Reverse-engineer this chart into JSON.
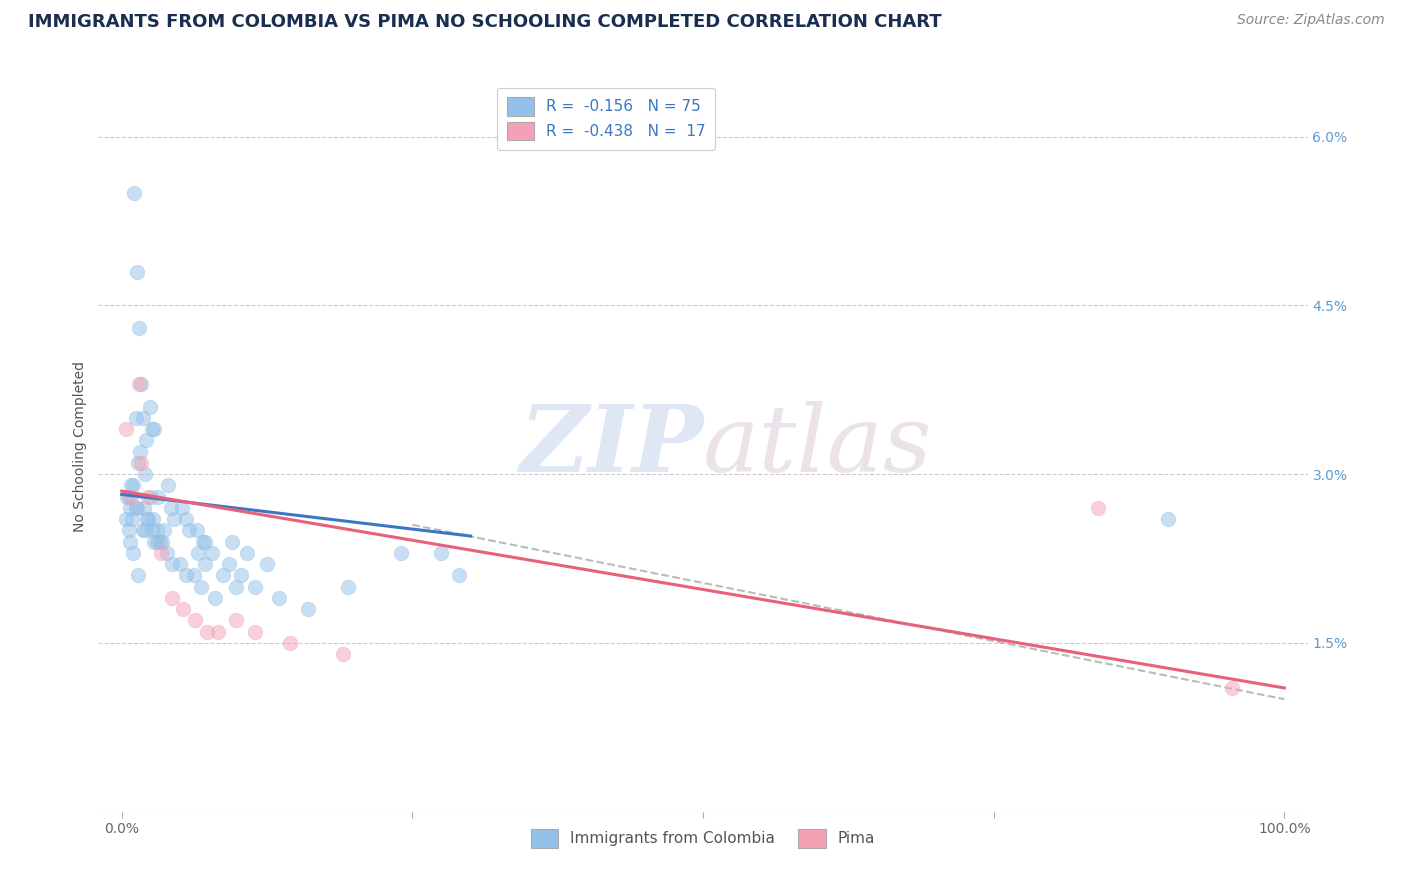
{
  "title": "IMMIGRANTS FROM COLOMBIA VS PIMA NO SCHOOLING COMPLETED CORRELATION CHART",
  "source_text": "Source: ZipAtlas.com",
  "ylabel": "No Schooling Completed",
  "watermark_zip": "ZIP",
  "watermark_atlas": "atlas",
  "legend_line1": "R =  -0.156   N = 75",
  "legend_line2": "R =  -0.438   N =  17",
  "legend_label_blue": "Immigrants from Colombia",
  "legend_label_pink": "Pima",
  "blue_color": "#92C0E8",
  "pink_color": "#F4A0B5",
  "blue_line_color": "#3B78C4",
  "pink_line_color": "#E8607A",
  "dashed_line_color": "#BBBBBB",
  "title_color": "#1A2E50",
  "source_color": "#888888",
  "right_axis_color": "#5B9BD5",
  "legend_r_color": "#3B78C4",
  "background_color": "#FFFFFF",
  "grid_color": "#CCCCCC",
  "xlim": [
    -2.0,
    102.0
  ],
  "ylim": [
    0.0,
    6.5
  ],
  "right_yticks": [
    0.0,
    1.5,
    3.0,
    4.5,
    6.0
  ],
  "right_yticklabels": [
    "",
    "1.5%",
    "3.0%",
    "4.5%",
    "6.0%"
  ],
  "blue_scatter_x": [
    1.1,
    1.3,
    1.5,
    1.7,
    0.5,
    0.7,
    0.9,
    1.2,
    2.1,
    2.6,
    1.4,
    0.8,
    1.6,
    2.0,
    1.8,
    2.4,
    2.8,
    0.6,
    1.0,
    1.9,
    2.2,
    3.0,
    3.3,
    2.5,
    0.4,
    1.3,
    2.0,
    3.5,
    4.5,
    5.8,
    7.0,
    4.0,
    5.2,
    3.1,
    2.7,
    1.8,
    0.6,
    1.2,
    2.3,
    3.6,
    4.2,
    5.5,
    6.5,
    7.2,
    7.8,
    9.2,
    10.3,
    11.5,
    13.5,
    16.0,
    19.5,
    24.0,
    29.0,
    2.6,
    3.0,
    3.9,
    5.0,
    6.2,
    6.8,
    8.0,
    9.5,
    10.8,
    12.5,
    0.7,
    1.0,
    1.4,
    2.8,
    4.3,
    5.5,
    6.6,
    7.2,
    8.7,
    9.8,
    90.0,
    27.5
  ],
  "blue_scatter_y": [
    5.5,
    4.8,
    4.3,
    3.8,
    2.8,
    2.7,
    2.6,
    3.5,
    3.3,
    3.4,
    3.1,
    2.9,
    3.2,
    3.0,
    3.5,
    3.6,
    3.4,
    2.8,
    2.9,
    2.7,
    2.6,
    2.5,
    2.4,
    2.8,
    2.6,
    2.7,
    2.5,
    2.4,
    2.6,
    2.5,
    2.4,
    2.9,
    2.7,
    2.8,
    2.6,
    2.5,
    2.5,
    2.7,
    2.6,
    2.5,
    2.7,
    2.6,
    2.5,
    2.4,
    2.3,
    2.2,
    2.1,
    2.0,
    1.9,
    1.8,
    2.0,
    2.3,
    2.1,
    2.5,
    2.4,
    2.3,
    2.2,
    2.1,
    2.0,
    1.9,
    2.4,
    2.3,
    2.2,
    2.4,
    2.3,
    2.1,
    2.4,
    2.2,
    2.1,
    2.3,
    2.2,
    2.1,
    2.0,
    2.6,
    2.3
  ],
  "pink_scatter_x": [
    0.4,
    0.8,
    1.7,
    2.3,
    3.4,
    4.3,
    5.3,
    6.3,
    7.3,
    8.3,
    9.8,
    11.5,
    14.5,
    19.0,
    84.0,
    95.5,
    1.5
  ],
  "pink_scatter_y": [
    3.4,
    2.8,
    3.1,
    2.8,
    2.3,
    1.9,
    1.8,
    1.7,
    1.6,
    1.6,
    1.7,
    1.6,
    1.5,
    1.4,
    2.7,
    1.1,
    3.8
  ],
  "blue_trend_x": [
    0.0,
    30.0
  ],
  "blue_trend_y": [
    2.82,
    2.45
  ],
  "pink_trend_x": [
    0.0,
    100.0
  ],
  "pink_trend_y": [
    2.85,
    1.1
  ],
  "dash_trend_x": [
    25.0,
    100.0
  ],
  "dash_trend_y": [
    2.55,
    1.0
  ],
  "title_fontsize": 13,
  "axis_label_fontsize": 10,
  "tick_fontsize": 10,
  "legend_fontsize": 11,
  "source_fontsize": 10,
  "scatter_size": 110,
  "scatter_alpha": 0.5
}
